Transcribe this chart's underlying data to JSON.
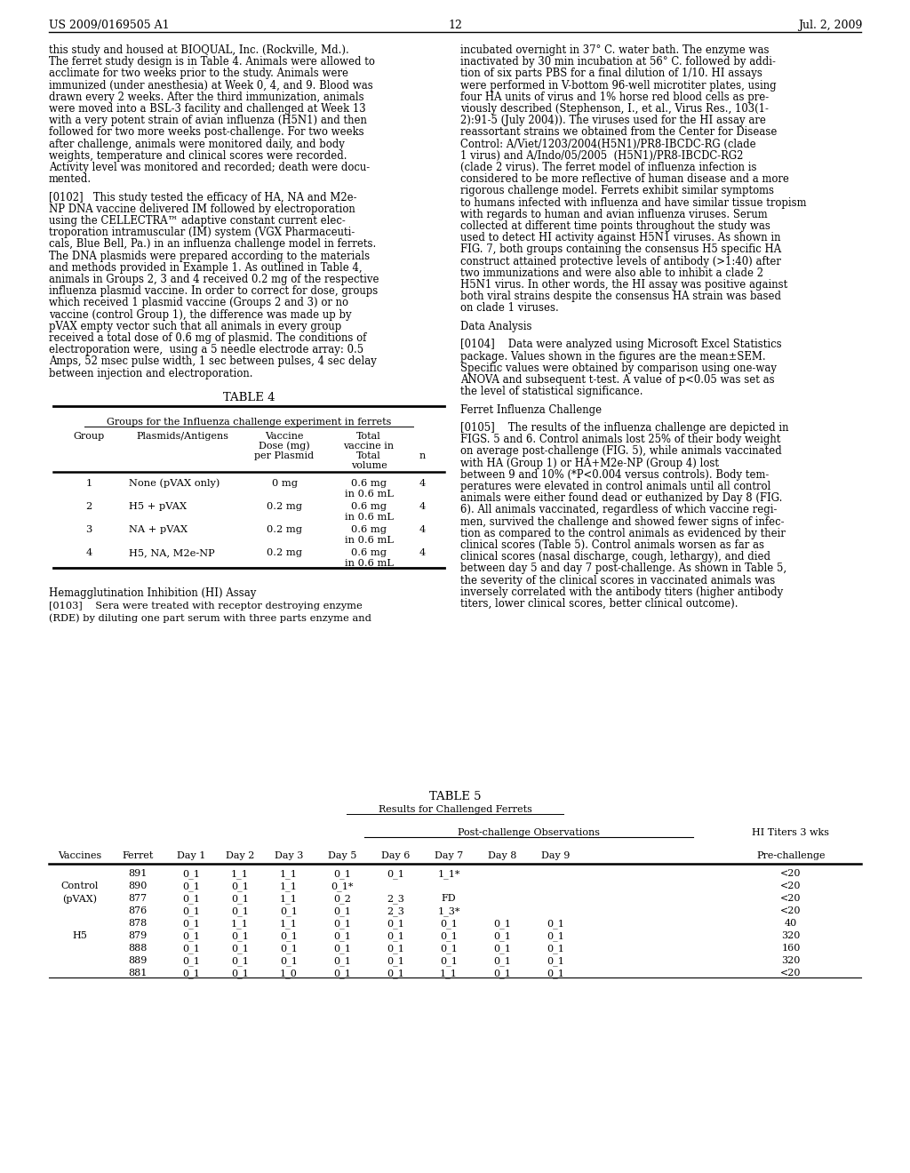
{
  "page_header_left": "US 2009/0169505 A1",
  "page_header_right": "Jul. 2, 2009",
  "page_number": "12",
  "background_color": "#ffffff",
  "left_column_text": [
    "this study and housed at BIOQUAL, Inc. (Rockville, Md.).",
    "The ferret study design is in Table 4. Animals were allowed to",
    "acclimate for two weeks prior to the study. Animals were",
    "immunized (under anesthesia) at Week 0, 4, and 9. Blood was",
    "drawn every 2 weeks. After the third immunization, animals",
    "were moved into a BSL-3 facility and challenged at Week 13",
    "with a very potent strain of avian influenza (H5N1) and then",
    "followed for two more weeks post-challenge. For two weeks",
    "after challenge, animals were monitored daily, and body",
    "weights, temperature and clinical scores were recorded.",
    "Activity level was monitored and recorded; death were docu-",
    "mented.",
    "BLANK",
    "[0102]   This study tested the efficacy of HA, NA and M2e-",
    "NP DNA vaccine delivered IM followed by electroporation",
    "using the CELLECTRA™ adaptive constant current elec-",
    "troporation intramuscular (IM) system (VGX Pharmaceuti-",
    "cals, Blue Bell, Pa.) in an influenza challenge model in ferrets.",
    "The DNA plasmids were prepared according to the materials",
    "and methods provided in Example 1. As outlined in Table 4,",
    "animals in Groups 2, 3 and 4 received 0.2 mg of the respective",
    "influenza plasmid vaccine. In order to correct for dose, groups",
    "which received 1 plasmid vaccine (Groups 2 and 3) or no",
    "vaccine (control Group 1), the difference was made up by",
    "pVAX empty vector such that all animals in every group",
    "received a total dose of 0.6 mg of plasmid. The conditions of",
    "electroporation were,  using a 5 needle electrode array: 0.5",
    "Amps, 52 msec pulse width, 1 sec between pulses, 4 sec delay",
    "between injection and electroporation."
  ],
  "right_column_text": [
    "incubated overnight in 37° C. water bath. The enzyme was",
    "inactivated by 30 min incubation at 56° C. followed by addi-",
    "tion of six parts PBS for a final dilution of 1/10. HI assays",
    "were performed in V-bottom 96-well microtiter plates, using",
    "four HA units of virus and 1% horse red blood cells as pre-",
    "viously described (Stephenson, I., et al., Virus Res., 103(1-",
    "2):91-5 (July 2004)). The viruses used for the HI assay are",
    "reassortant strains we obtained from the Center for Disease",
    "Control: A/Viet/1203/2004(H5N1)/PR8-IBCDC-RG (clade",
    "1 virus) and A/Indo/05/2005  (H5N1)/PR8-IBCDC-RG2",
    "(clade 2 virus). The ferret model of influenza infection is",
    "considered to be more reflective of human disease and a more",
    "rigorous challenge model. Ferrets exhibit similar symptoms",
    "to humans infected with influenza and have similar tissue tropism",
    "with regards to human and avian influenza viruses. Serum",
    "collected at different time points throughout the study was",
    "used to detect HI activity against H5N1 viruses. As shown in",
    "FIG. 7, both groups containing the consensus H5 specific HA",
    "construct attained protective levels of antibody (>1:40) after",
    "two immunizations and were also able to inhibit a clade 2",
    "H5N1 virus. In other words, the HI assay was positive against",
    "both viral strains despite the consensus HA strain was based",
    "on clade 1 viruses.",
    "BLANK",
    "Data Analysis",
    "BLANK",
    "[0104]    Data were analyzed using Microsoft Excel Statistics",
    "package. Values shown in the figures are the mean±SEM.",
    "Specific values were obtained by comparison using one-way",
    "ANOVA and subsequent t-test. A value of p<0.05 was set as",
    "the level of statistical significance.",
    "BLANK",
    "Ferret Influenza Challenge",
    "BLANK",
    "[0105]    The results of the influenza challenge are depicted in",
    "FIGS. 5 and 6. Control animals lost 25% of their body weight",
    "on average post-challenge (FIG. 5), while animals vaccinated",
    "with HA (Group 1) or HA+M2e-NP (Group 4) lost",
    "between 9 and 10% (*P<0.004 versus controls). Body tem-",
    "peratures were elevated in control animals until all control",
    "animals were either found dead or euthanized by Day 8 (FIG.",
    "6). All animals vaccinated, regardless of which vaccine regi-",
    "men, survived the challenge and showed fewer signs of infec-",
    "tion as compared to the control animals as evidenced by their",
    "clinical scores (Table 5). Control animals worsen as far as",
    "clinical scores (nasal discharge, cough, lethargy), and died",
    "between day 5 and day 7 post-challenge. As shown in Table 5,",
    "the severity of the clinical scores in vaccinated animals was",
    "inversely correlated with the antibody titers (higher antibody",
    "titers, lower clinical scores, better clinical outcome)."
  ],
  "table4_title": "TABLE 4",
  "table4_subtitle": "Groups for the Influenza challenge experiment in ferrets",
  "table4_rows": [
    [
      "1",
      "None (pVAX only)",
      "0 mg",
      "0.6 mg",
      "in 0.6 mL",
      "4"
    ],
    [
      "2",
      "H5 + pVAX",
      "0.2 mg",
      "0.6 mg",
      "in 0.6 mL",
      "4"
    ],
    [
      "3",
      "NA + pVAX",
      "0.2 mg",
      "0.6 mg",
      "in 0.6 mL",
      "4"
    ],
    [
      "4",
      "H5, NA, M2e-NP",
      "0.2 mg",
      "0.6 mg",
      "in 0.6 mL",
      "4"
    ]
  ],
  "hi_assay_heading": "Hemagglutination Inhibition (HI) Assay",
  "hi_assay_lines": [
    "[0103]    Sera were treated with receptor destroying enzyme",
    "(RDE) by diluting one part serum with three parts enzyme and"
  ],
  "table5_title": "TABLE 5",
  "table5_subtitle": "Results for Challenged Ferrets",
  "table5_pco": "Post-challenge Observations",
  "table5_hi": "HI Titers 3 wks",
  "table5_col_headers": [
    "Vaccines",
    "Ferret",
    "Day 1",
    "Day 2",
    "Day 3",
    "Day 5",
    "Day 6",
    "Day 7",
    "Day 8",
    "Day 9",
    "Pre-challenge"
  ],
  "table5_rows": [
    [
      "",
      "891",
      "0_1",
      "1_1",
      "1_1",
      "0_1",
      "0_1",
      "1_1*",
      "",
      "",
      "<20"
    ],
    [
      "Control",
      "890",
      "0_1",
      "0_1",
      "1_1",
      "0_1*",
      "",
      "",
      "",
      "",
      "<20"
    ],
    [
      "(pVAX)",
      "877",
      "0_1",
      "0_1",
      "1_1",
      "0_2",
      "2_3",
      "FD",
      "",
      "",
      "<20"
    ],
    [
      "",
      "876",
      "0_1",
      "0_1",
      "0_1",
      "0_1",
      "2_3",
      "1_3*",
      "",
      "",
      "<20"
    ],
    [
      "",
      "878",
      "0_1",
      "1_1",
      "1_1",
      "0_1",
      "0_1",
      "0_1",
      "0_1",
      "0_1",
      "40"
    ],
    [
      "H5",
      "879",
      "0_1",
      "0_1",
      "0_1",
      "0_1",
      "0_1",
      "0_1",
      "0_1",
      "0_1",
      "320"
    ],
    [
      "",
      "888",
      "0_1",
      "0_1",
      "0_1",
      "0_1",
      "0_1",
      "0_1",
      "0_1",
      "0_1",
      "160"
    ],
    [
      "",
      "889",
      "0_1",
      "0_1",
      "0_1",
      "0_1",
      "0_1",
      "0_1",
      "0_1",
      "0_1",
      "320"
    ],
    [
      "",
      "881",
      "0_1",
      "0_1",
      "1_0",
      "0_1",
      "0_1",
      "1_1",
      "0_1",
      "0_1",
      "<20"
    ]
  ]
}
